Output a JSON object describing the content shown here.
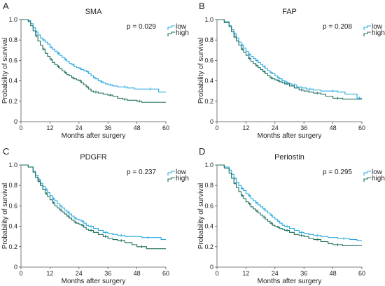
{
  "chart_data": [
    {
      "type": "line",
      "panel_letter": "A",
      "title": "SMA",
      "annotation": "p = 0.029",
      "xlabel": "Months after surgery",
      "ylabel": "Probability of survival",
      "xlim": [
        0,
        60
      ],
      "ylim": [
        0,
        1.0
      ],
      "xticks": [
        0,
        12,
        24,
        36,
        48,
        60
      ],
      "yticks": [
        0,
        0.2,
        0.4,
        0.6,
        0.8,
        1.0
      ],
      "xtick_labels": [
        "0",
        "12",
        "24",
        "36",
        "48",
        "60"
      ],
      "ytick_labels": [
        "0",
        "0.2",
        "0.4",
        "0.6",
        "0.8",
        "1.0"
      ],
      "grid": false,
      "legend_position": "top-right",
      "step": true,
      "series": [
        {
          "name": "low",
          "color": "#29a9e0",
          "x": [
            0,
            3,
            4,
            5,
            6,
            7,
            8,
            9,
            10,
            11,
            12,
            13,
            14,
            15,
            16,
            17,
            18,
            19,
            20,
            21,
            22,
            23,
            24,
            25,
            26,
            27,
            28,
            29,
            30,
            31,
            32,
            33,
            34,
            35,
            36,
            38,
            40,
            42,
            44,
            47,
            50,
            57,
            60
          ],
          "y": [
            1.0,
            0.99,
            0.96,
            0.92,
            0.88,
            0.85,
            0.82,
            0.8,
            0.78,
            0.76,
            0.73,
            0.71,
            0.69,
            0.67,
            0.65,
            0.63,
            0.61,
            0.59,
            0.57,
            0.56,
            0.54,
            0.53,
            0.52,
            0.51,
            0.5,
            0.49,
            0.47,
            0.45,
            0.43,
            0.42,
            0.4,
            0.39,
            0.38,
            0.37,
            0.36,
            0.35,
            0.34,
            0.34,
            0.33,
            0.32,
            0.32,
            0.29,
            0.29
          ]
        },
        {
          "name": "high",
          "color": "#1e6e5c",
          "x": [
            0,
            3,
            4,
            5,
            6,
            7,
            8,
            9,
            10,
            11,
            12,
            13,
            14,
            15,
            16,
            17,
            18,
            19,
            20,
            21,
            22,
            23,
            24,
            25,
            26,
            27,
            28,
            29,
            30,
            32,
            34,
            36,
            38,
            40,
            42,
            44,
            46,
            48,
            50,
            60
          ],
          "y": [
            1.0,
            0.98,
            0.94,
            0.89,
            0.84,
            0.79,
            0.75,
            0.71,
            0.67,
            0.64,
            0.61,
            0.58,
            0.56,
            0.54,
            0.52,
            0.5,
            0.48,
            0.46,
            0.45,
            0.43,
            0.42,
            0.41,
            0.4,
            0.38,
            0.36,
            0.34,
            0.32,
            0.3,
            0.29,
            0.28,
            0.27,
            0.26,
            0.25,
            0.23,
            0.22,
            0.21,
            0.21,
            0.2,
            0.19,
            0.19
          ]
        }
      ]
    },
    {
      "type": "line",
      "panel_letter": "B",
      "title": "FAP",
      "annotation": "p = 0.208",
      "xlabel": "Months after surgery",
      "ylabel": "Probability of survival",
      "xlim": [
        0,
        60
      ],
      "ylim": [
        0,
        1.0
      ],
      "xticks": [
        0,
        12,
        24,
        36,
        48,
        60
      ],
      "yticks": [
        0,
        0.2,
        0.4,
        0.6,
        0.8,
        1.0
      ],
      "xtick_labels": [
        "0",
        "12",
        "24",
        "36",
        "48",
        "60"
      ],
      "ytick_labels": [
        "0",
        "0.2",
        "0.4",
        "0.6",
        "0.8",
        "1.0"
      ],
      "grid": false,
      "legend_position": "top-right",
      "step": true,
      "series": [
        {
          "name": "low",
          "color": "#29a9e0",
          "x": [
            0,
            3,
            5,
            6,
            7,
            8,
            9,
            10,
            11,
            12,
            13,
            14,
            15,
            16,
            17,
            18,
            19,
            20,
            21,
            22,
            23,
            24,
            25,
            26,
            27,
            28,
            29,
            30,
            31,
            33,
            35,
            37,
            40,
            43,
            46,
            50,
            53,
            58,
            60
          ],
          "y": [
            1.0,
            0.98,
            0.94,
            0.9,
            0.86,
            0.82,
            0.78,
            0.75,
            0.72,
            0.69,
            0.66,
            0.64,
            0.62,
            0.6,
            0.58,
            0.56,
            0.54,
            0.52,
            0.5,
            0.48,
            0.47,
            0.45,
            0.43,
            0.42,
            0.4,
            0.39,
            0.38,
            0.37,
            0.36,
            0.34,
            0.33,
            0.32,
            0.31,
            0.3,
            0.3,
            0.29,
            0.27,
            0.23,
            0.23
          ]
        },
        {
          "name": "high",
          "color": "#1e6e5c",
          "x": [
            0,
            3,
            5,
            6,
            7,
            8,
            9,
            10,
            11,
            12,
            13,
            14,
            15,
            16,
            17,
            18,
            19,
            20,
            21,
            22,
            23,
            24,
            25,
            26,
            27,
            28,
            30,
            32,
            34,
            36,
            38,
            40,
            43,
            45,
            48,
            52,
            60
          ],
          "y": [
            1.0,
            0.97,
            0.93,
            0.88,
            0.83,
            0.79,
            0.75,
            0.71,
            0.68,
            0.65,
            0.62,
            0.59,
            0.57,
            0.55,
            0.53,
            0.51,
            0.49,
            0.47,
            0.45,
            0.43,
            0.42,
            0.41,
            0.4,
            0.39,
            0.38,
            0.37,
            0.35,
            0.33,
            0.31,
            0.3,
            0.29,
            0.28,
            0.27,
            0.25,
            0.23,
            0.22,
            0.22
          ]
        }
      ]
    },
    {
      "type": "line",
      "panel_letter": "C",
      "title": "PDGFR",
      "annotation": "p = 0.237",
      "xlabel": "Months after surgery",
      "ylabel": "Probability of survival",
      "xlim": [
        0,
        60
      ],
      "ylim": [
        0,
        1.0
      ],
      "xticks": [
        0,
        12,
        24,
        36,
        48,
        60
      ],
      "yticks": [
        0,
        0.2,
        0.4,
        0.6,
        0.8,
        1.0
      ],
      "xtick_labels": [
        "0",
        "12",
        "24",
        "36",
        "48",
        "60"
      ],
      "ytick_labels": [
        "0",
        "0.2",
        "0.4",
        "0.6",
        "0.8",
        "1.0"
      ],
      "grid": false,
      "legend_position": "top-right",
      "step": true,
      "series": [
        {
          "name": "low",
          "color": "#29a9e0",
          "x": [
            0,
            3,
            5,
            6,
            7,
            8,
            9,
            10,
            11,
            12,
            13,
            14,
            15,
            16,
            17,
            18,
            19,
            20,
            21,
            22,
            23,
            24,
            25,
            26,
            27,
            28,
            30,
            32,
            34,
            36,
            38,
            40,
            43,
            46,
            50,
            55,
            58,
            60
          ],
          "y": [
            1.0,
            0.98,
            0.94,
            0.9,
            0.86,
            0.82,
            0.79,
            0.76,
            0.73,
            0.7,
            0.67,
            0.65,
            0.62,
            0.6,
            0.58,
            0.56,
            0.54,
            0.52,
            0.5,
            0.48,
            0.47,
            0.46,
            0.45,
            0.43,
            0.41,
            0.4,
            0.38,
            0.36,
            0.34,
            0.33,
            0.32,
            0.31,
            0.3,
            0.3,
            0.29,
            0.29,
            0.27,
            0.27
          ]
        },
        {
          "name": "high",
          "color": "#1e6e5c",
          "x": [
            0,
            3,
            5,
            6,
            7,
            8,
            9,
            10,
            11,
            12,
            13,
            14,
            15,
            16,
            17,
            18,
            19,
            20,
            21,
            22,
            23,
            24,
            25,
            26,
            27,
            28,
            30,
            32,
            34,
            36,
            38,
            40,
            43,
            46,
            48,
            52,
            60
          ],
          "y": [
            1.0,
            0.98,
            0.93,
            0.88,
            0.84,
            0.8,
            0.76,
            0.72,
            0.69,
            0.66,
            0.63,
            0.6,
            0.58,
            0.56,
            0.54,
            0.52,
            0.5,
            0.48,
            0.46,
            0.44,
            0.43,
            0.42,
            0.41,
            0.39,
            0.37,
            0.36,
            0.34,
            0.32,
            0.3,
            0.28,
            0.27,
            0.26,
            0.24,
            0.22,
            0.2,
            0.18,
            0.18
          ]
        }
      ]
    },
    {
      "type": "line",
      "panel_letter": "D",
      "title": "Periostin",
      "annotation": "p = 0.295",
      "xlabel": "Months after surgery",
      "ylabel": "Probability of survival",
      "xlim": [
        0,
        60
      ],
      "ylim": [
        0,
        1.0
      ],
      "xticks": [
        0,
        12,
        24,
        36,
        48,
        60
      ],
      "yticks": [
        0,
        0.2,
        0.4,
        0.6,
        0.8,
        1.0
      ],
      "xtick_labels": [
        "0",
        "12",
        "24",
        "36",
        "48",
        "60"
      ],
      "ytick_labels": [
        "0",
        "0.2",
        "0.4",
        "0.6",
        "0.8",
        "1.0"
      ],
      "grid": false,
      "legend_position": "top-right",
      "step": true,
      "series": [
        {
          "name": "low",
          "color": "#29a9e0",
          "x": [
            0,
            3,
            5,
            6,
            7,
            8,
            9,
            10,
            11,
            12,
            13,
            14,
            15,
            16,
            17,
            18,
            19,
            20,
            21,
            22,
            23,
            24,
            25,
            26,
            27,
            28,
            30,
            32,
            34,
            36,
            38,
            40,
            43,
            46,
            50,
            55,
            58,
            60
          ],
          "y": [
            1.0,
            0.98,
            0.95,
            0.91,
            0.87,
            0.83,
            0.8,
            0.77,
            0.75,
            0.72,
            0.7,
            0.67,
            0.65,
            0.63,
            0.61,
            0.59,
            0.57,
            0.55,
            0.53,
            0.51,
            0.49,
            0.47,
            0.45,
            0.43,
            0.41,
            0.4,
            0.38,
            0.36,
            0.34,
            0.33,
            0.32,
            0.31,
            0.3,
            0.29,
            0.28,
            0.27,
            0.26,
            0.26
          ]
        },
        {
          "name": "high",
          "color": "#1e6e5c",
          "x": [
            0,
            3,
            5,
            6,
            7,
            8,
            9,
            10,
            11,
            12,
            13,
            14,
            15,
            16,
            17,
            18,
            19,
            20,
            21,
            22,
            23,
            24,
            25,
            26,
            27,
            28,
            30,
            32,
            34,
            36,
            38,
            40,
            43,
            46,
            48,
            52,
            60
          ],
          "y": [
            1.0,
            0.97,
            0.92,
            0.87,
            0.82,
            0.78,
            0.74,
            0.7,
            0.67,
            0.64,
            0.62,
            0.59,
            0.57,
            0.55,
            0.53,
            0.51,
            0.49,
            0.47,
            0.45,
            0.43,
            0.41,
            0.4,
            0.39,
            0.38,
            0.37,
            0.36,
            0.34,
            0.32,
            0.31,
            0.3,
            0.28,
            0.27,
            0.25,
            0.23,
            0.22,
            0.21,
            0.21
          ]
        }
      ]
    }
  ]
}
